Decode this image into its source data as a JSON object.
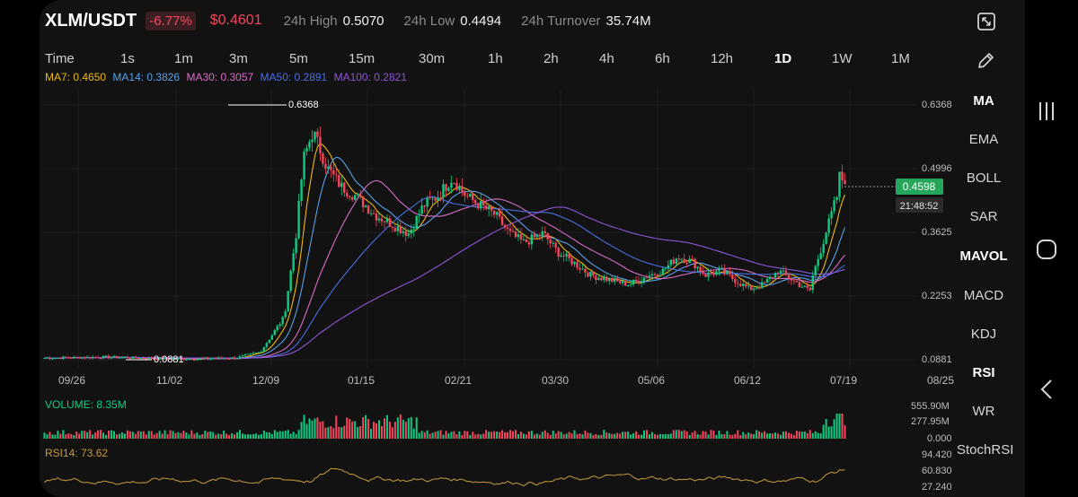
{
  "header": {
    "pair": "XLM/USDT",
    "change": "-6.77%",
    "price": "$0.4601",
    "high_label": "24h High",
    "high_value": "0.5070",
    "low_label": "24h Low",
    "low_value": "0.4494",
    "turnover_label": "24h Turnover",
    "turnover_value": "35.74M"
  },
  "timeframes": [
    "Time",
    "1s",
    "1m",
    "3m",
    "5m",
    "15m",
    "30m",
    "1h",
    "2h",
    "4h",
    "6h",
    "12h",
    "1D",
    "1W",
    "1M"
  ],
  "active_timeframe": "1D",
  "ma_legend": [
    {
      "text": "MA7: 0.4650",
      "color": "#f0b90b"
    },
    {
      "text": "MA14: 0.3826",
      "color": "#5aa0e6"
    },
    {
      "text": "MA30: 0.3057",
      "color": "#d86bc8"
    },
    {
      "text": "MA50: 0.2891",
      "color": "#4a6ee0"
    },
    {
      "text": "MA100: 0.2821",
      "color": "#8c56d6"
    }
  ],
  "indicators": [
    "MA",
    "EMA",
    "BOLL",
    "SAR",
    "MAVOL",
    "MACD",
    "KDJ",
    "RSI",
    "WR",
    "StochRSI"
  ],
  "active_indicators": [
    "MA",
    "MAVOL",
    "RSI"
  ],
  "chart": {
    "y_ticks": [
      "0.6368",
      "0.4996",
      "0.3625",
      "0.2253",
      "0.0881"
    ],
    "x_ticks": [
      "09/26",
      "11/02",
      "12/09",
      "01/15",
      "02/21",
      "03/30",
      "05/06",
      "06/12",
      "07/19",
      "08/25"
    ],
    "max_marker": "0.6368",
    "min_marker": "0.0881",
    "last_price": "0.4598",
    "countdown": "21:48:52"
  },
  "volume": {
    "label": "VOLUME: 8.35M",
    "ticks": [
      "555.90M",
      "277.95M",
      "0.000"
    ]
  },
  "rsi": {
    "label": "RSI14: 73.62",
    "ticks": [
      "94.420",
      "60.830",
      "27.240"
    ]
  },
  "colors": {
    "up": "#0ecb81",
    "down": "#f6465d",
    "rsi": "#c79a3a",
    "bg": "#121212"
  },
  "icons": [
    "fullscreen-icon",
    "pencil-icon",
    "recent-apps-icon",
    "home-icon",
    "back-icon"
  ]
}
